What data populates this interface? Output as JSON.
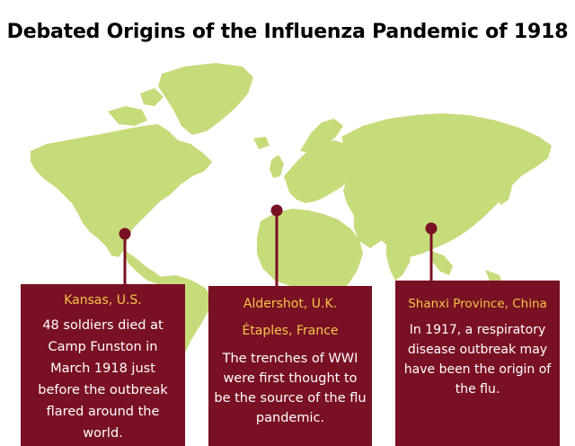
{
  "title": "Debated Origins of the Influenza Pandemic of 1918",
  "colors": {
    "land": "#c6dc7b",
    "card_background": "#7a1023",
    "pin": "#7a1023",
    "place_name": "#f3c64a",
    "description": "#ffffff"
  },
  "locations": [
    {
      "place": "Kansas, U.S.",
      "description": "48 soldiers died at Camp Funston in March 1918 just before the outbreak flared around the world."
    },
    {
      "place": "Aldershot, U.K.",
      "place_secondary": "Étaples, France",
      "description": "The trenches of WWI were first thought to be the source of the flu pandemic."
    },
    {
      "place": "Shanxi Province, China",
      "description": "In 1917, a respiratory disease outbreak may have been the origin of the flu."
    }
  ]
}
